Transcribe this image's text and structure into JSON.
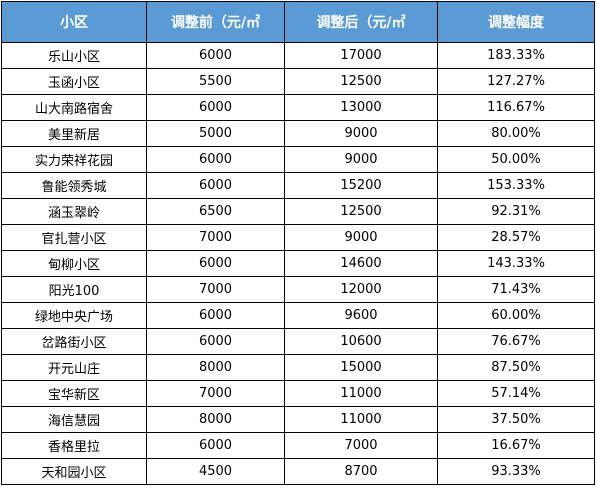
{
  "header": {
    "community": "小区",
    "before": "调整前（元/㎡",
    "after": "调整后（元/㎡",
    "change": "调整幅度"
  },
  "rows": [
    {
      "name": "乐山小区",
      "before": "6000",
      "after": "17000",
      "change": "183.33%"
    },
    {
      "name": "玉函小区",
      "before": "5500",
      "after": "12500",
      "change": "127.27%"
    },
    {
      "name": "山大南路宿舍",
      "before": "6000",
      "after": "13000",
      "change": "116.67%"
    },
    {
      "name": "美里新居",
      "before": "5000",
      "after": "9000",
      "change": "80.00%"
    },
    {
      "name": "实力荣祥花园",
      "before": "6000",
      "after": "9000",
      "change": "50.00%"
    },
    {
      "name": "鲁能领秀城",
      "before": "6000",
      "after": "15200",
      "change": "153.33%"
    },
    {
      "name": "涵玉翠岭",
      "before": "6500",
      "after": "12500",
      "change": "92.31%"
    },
    {
      "name": "官扎营小区",
      "before": "7000",
      "after": "9000",
      "change": "28.57%"
    },
    {
      "name": "甸柳小区",
      "before": "6000",
      "after": "14600",
      "change": "143.33%"
    },
    {
      "name": "阳光100",
      "before": "7000",
      "after": "12000",
      "change": "71.43%"
    },
    {
      "name": "绿地中央广场",
      "before": "6000",
      "after": "9600",
      "change": "60.00%"
    },
    {
      "name": "岔路街小区",
      "before": "6000",
      "after": "10600",
      "change": "76.67%"
    },
    {
      "name": "开元山庄",
      "before": "8000",
      "after": "15000",
      "change": "87.50%"
    },
    {
      "name": "宝华新区",
      "before": "7000",
      "after": "11000",
      "change": "57.14%"
    },
    {
      "name": "海信慧园",
      "before": "8000",
      "after": "11000",
      "change": "37.50%"
    },
    {
      "name": "香格里拉",
      "before": "6000",
      "after": "7000",
      "change": "16.67%"
    },
    {
      "name": "天和园小区",
      "before": "4500",
      "after": "8700",
      "change": "93.33%"
    }
  ]
}
